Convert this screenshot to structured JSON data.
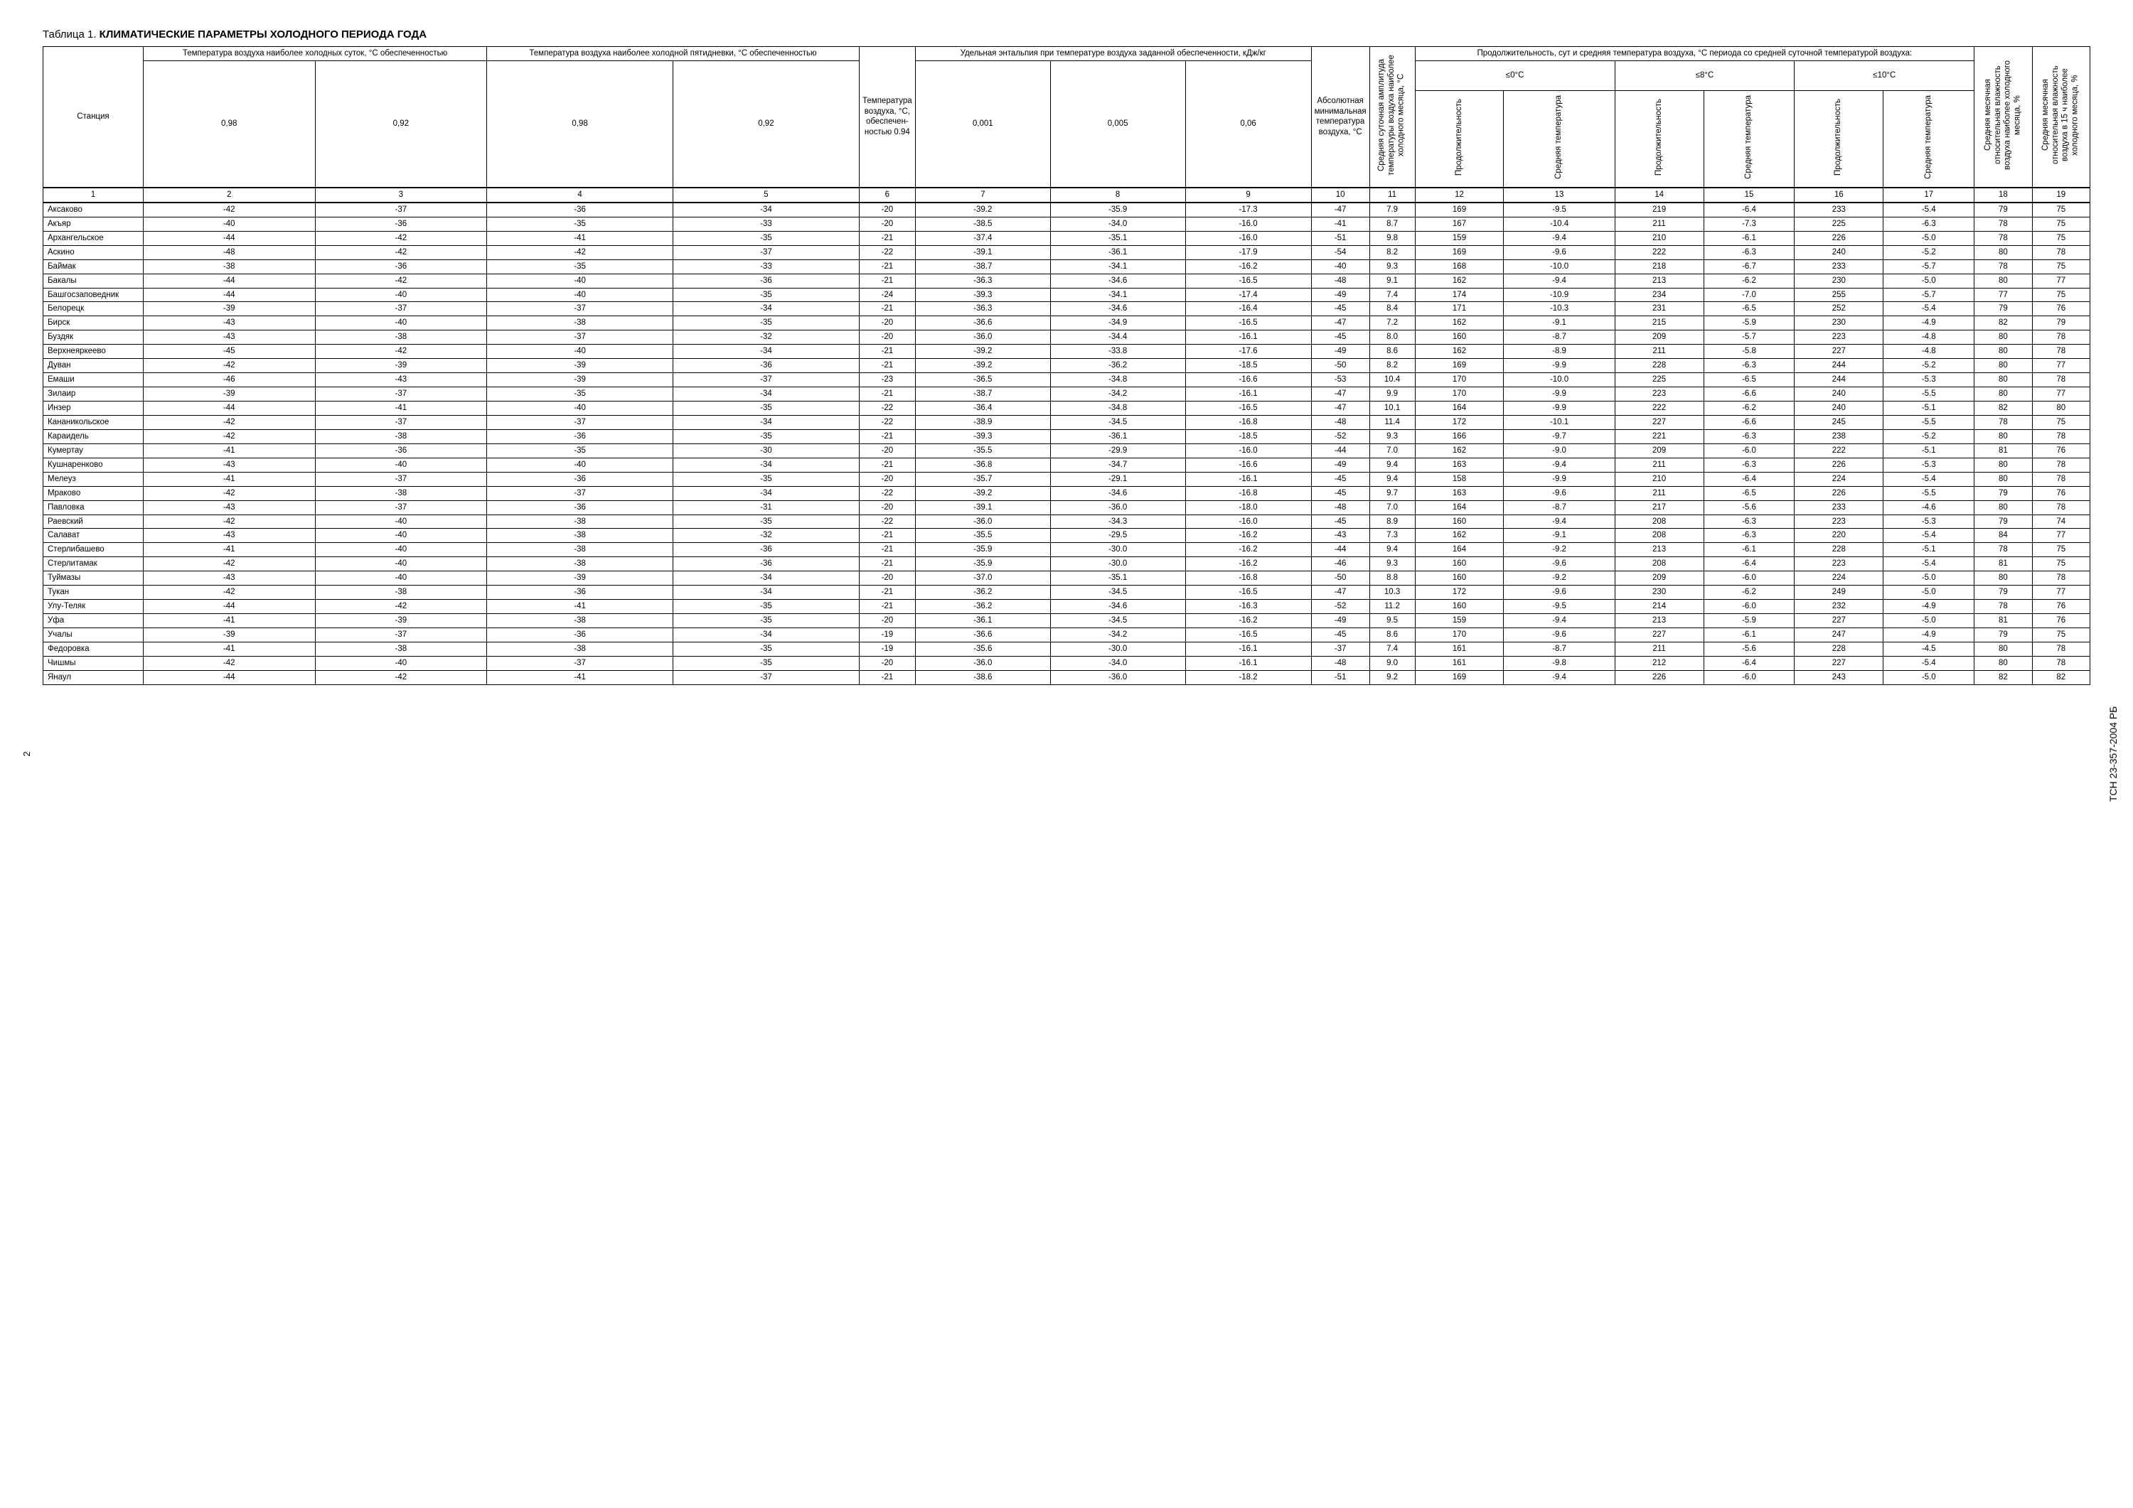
{
  "doc_code": "ТСН 23-357-2004 РБ",
  "page_number": "2",
  "title_prefix": "Таблица 1. ",
  "title_main": "КЛИМАТИЧЕСКИЕ ПАРАМЕТРЫ ХОЛОДНОГО ПЕРИОДА ГОДА",
  "headers": {
    "station": "Станция",
    "g1": "Температура воздуха наиболее холодных суток, °С обеспеченностью",
    "g2": "Температура воздуха наиболее холодной пятидневки, °С обеспеченностью",
    "g3": "Температура воздуха, °С, обеспечен-ностью 0.94",
    "g4": "Удельная энтальпия при температуре воздуха заданной обеспеченности, кДж/кг",
    "g5": "Абсолютная минимальная температура воздуха, °С",
    "g6": "Средняя суточная амплитуда температуры воздуха наиболее холодного месяца, °С",
    "g7": "Продолжительность, сут и средняя температура воздуха, °С периода со средней суточной температурой воздуха:",
    "g8": "Средняя месячная относительная влажность воздуха наиболее холодного месяца, %",
    "g9": "Средняя месячная относительная влажность воздуха в 15 ч наиболее холодного месяца, %",
    "sub_098": "0,98",
    "sub_092": "0,92",
    "sub_0001": "0,001",
    "sub_0005": "0,005",
    "sub_006": "0,06",
    "r0": "≤0°С",
    "r8": "≤8°С",
    "r10": "≤10°С",
    "dur": "Продолжительность",
    "avgt": "Средняя температура"
  },
  "colnums": [
    "1",
    "2",
    "3",
    "4",
    "5",
    "6",
    "7",
    "8",
    "9",
    "10",
    "11",
    "12",
    "13",
    "14",
    "15",
    "16",
    "17",
    "18",
    "19"
  ],
  "rows": [
    [
      "Аксаково",
      "-42",
      "-37",
      "-36",
      "-34",
      "-20",
      "-39.2",
      "-35.9",
      "-17.3",
      "-47",
      "7.9",
      "169",
      "-9.5",
      "219",
      "-6.4",
      "233",
      "-5.4",
      "79",
      "75"
    ],
    [
      "Акъяр",
      "-40",
      "-36",
      "-35",
      "-33",
      "-20",
      "-38.5",
      "-34.0",
      "-16.0",
      "-41",
      "8.7",
      "167",
      "-10.4",
      "211",
      "-7.3",
      "225",
      "-6.3",
      "78",
      "75"
    ],
    [
      "Архангельское",
      "-44",
      "-42",
      "-41",
      "-35",
      "-21",
      "-37.4",
      "-35.1",
      "-16.0",
      "-51",
      "9.8",
      "159",
      "-9.4",
      "210",
      "-6.1",
      "226",
      "-5.0",
      "78",
      "75"
    ],
    [
      "Аскино",
      "-48",
      "-42",
      "-42",
      "-37",
      "-22",
      "-39.1",
      "-36.1",
      "-17.9",
      "-54",
      "8.2",
      "169",
      "-9.6",
      "222",
      "-6.3",
      "240",
      "-5.2",
      "80",
      "78"
    ],
    [
      "Баймак",
      "-38",
      "-36",
      "-35",
      "-33",
      "-21",
      "-38.7",
      "-34.1",
      "-16.2",
      "-40",
      "9.3",
      "168",
      "-10.0",
      "218",
      "-6.7",
      "233",
      "-5.7",
      "78",
      "75"
    ],
    [
      "Бакалы",
      "-44",
      "-42",
      "-40",
      "-36",
      "-21",
      "-36.3",
      "-34.6",
      "-16.5",
      "-48",
      "9.1",
      "162",
      "-9.4",
      "213",
      "-6.2",
      "230",
      "-5.0",
      "80",
      "77"
    ],
    [
      "Башгосзаповедник",
      "-44",
      "-40",
      "-40",
      "-35",
      "-24",
      "-39.3",
      "-34.1",
      "-17.4",
      "-49",
      "7.4",
      "174",
      "-10.9",
      "234",
      "-7.0",
      "255",
      "-5.7",
      "77",
      "75"
    ],
    [
      "Белорецк",
      "-39",
      "-37",
      "-37",
      "-34",
      "-21",
      "-36.3",
      "-34.6",
      "-16.4",
      "-45",
      "8.4",
      "171",
      "-10.3",
      "231",
      "-6.5",
      "252",
      "-5.4",
      "79",
      "76"
    ],
    [
      "Бирск",
      "-43",
      "-40",
      "-38",
      "-35",
      "-20",
      "-36.6",
      "-34.9",
      "-16.5",
      "-47",
      "7.2",
      "162",
      "-9.1",
      "215",
      "-5.9",
      "230",
      "-4.9",
      "82",
      "79"
    ],
    [
      "Буздяк",
      "-43",
      "-38",
      "-37",
      "-32",
      "-20",
      "-36.0",
      "-34.4",
      "-16.1",
      "-45",
      "8.0",
      "160",
      "-8.7",
      "209",
      "-5.7",
      "223",
      "-4.8",
      "80",
      "78"
    ],
    [
      "Верхнеяркеево",
      "-45",
      "-42",
      "-40",
      "-34",
      "-21",
      "-39.2",
      "-33.8",
      "-17.6",
      "-49",
      "8.6",
      "162",
      "-8.9",
      "211",
      "-5.8",
      "227",
      "-4.8",
      "80",
      "78"
    ],
    [
      "Дуван",
      "-42",
      "-39",
      "-39",
      "-36",
      "-21",
      "-39.2",
      "-36.2",
      "-18.5",
      "-50",
      "8.2",
      "169",
      "-9.9",
      "228",
      "-6.3",
      "244",
      "-5.2",
      "80",
      "77"
    ],
    [
      "Емаши",
      "-46",
      "-43",
      "-39",
      "-37",
      "-23",
      "-36.5",
      "-34.8",
      "-16.6",
      "-53",
      "10.4",
      "170",
      "-10.0",
      "225",
      "-6.5",
      "244",
      "-5.3",
      "80",
      "78"
    ],
    [
      "Зилаир",
      "-39",
      "-37",
      "-35",
      "-34",
      "-21",
      "-38.7",
      "-34.2",
      "-16.1",
      "-47",
      "9.9",
      "170",
      "-9.9",
      "223",
      "-6.6",
      "240",
      "-5.5",
      "80",
      "77"
    ],
    [
      "Инзер",
      "-44",
      "-41",
      "-40",
      "-35",
      "-22",
      "-36.4",
      "-34.8",
      "-16.5",
      "-47",
      "10.1",
      "164",
      "-9.9",
      "222",
      "-6.2",
      "240",
      "-5.1",
      "82",
      "80"
    ],
    [
      "Кананикольское",
      "-42",
      "-37",
      "-37",
      "-34",
      "-22",
      "-38.9",
      "-34.5",
      "-16.8",
      "-48",
      "11.4",
      "172",
      "-10.1",
      "227",
      "-6.6",
      "245",
      "-5.5",
      "78",
      "75"
    ],
    [
      "Караидель",
      "-42",
      "-38",
      "-36",
      "-35",
      "-21",
      "-39.3",
      "-36.1",
      "-18.5",
      "-52",
      "9.3",
      "166",
      "-9.7",
      "221",
      "-6.3",
      "238",
      "-5.2",
      "80",
      "78"
    ],
    [
      "Кумертау",
      "-41",
      "-36",
      "-35",
      "-30",
      "-20",
      "-35.5",
      "-29.9",
      "-16.0",
      "-44",
      "7.0",
      "162",
      "-9.0",
      "209",
      "-6.0",
      "222",
      "-5.1",
      "81",
      "76"
    ],
    [
      "Кушнаренково",
      "-43",
      "-40",
      "-40",
      "-34",
      "-21",
      "-36.8",
      "-34.7",
      "-16.6",
      "-49",
      "9.4",
      "163",
      "-9.4",
      "211",
      "-6.3",
      "226",
      "-5.3",
      "80",
      "78"
    ],
    [
      "Мелеуз",
      "-41",
      "-37",
      "-36",
      "-35",
      "-20",
      "-35.7",
      "-29.1",
      "-16.1",
      "-45",
      "9.4",
      "158",
      "-9.9",
      "210",
      "-6.4",
      "224",
      "-5.4",
      "80",
      "78"
    ],
    [
      "Мраково",
      "-42",
      "-38",
      "-37",
      "-34",
      "-22",
      "-39.2",
      "-34.6",
      "-16.8",
      "-45",
      "9.7",
      "163",
      "-9.6",
      "211",
      "-6.5",
      "226",
      "-5.5",
      "79",
      "76"
    ],
    [
      "Павловка",
      "-43",
      "-37",
      "-36",
      "-31",
      "-20",
      "-39.1",
      "-36.0",
      "-18.0",
      "-48",
      "7.0",
      "164",
      "-8.7",
      "217",
      "-5.6",
      "233",
      "-4.6",
      "80",
      "78"
    ],
    [
      "Раевский",
      "-42",
      "-40",
      "-38",
      "-35",
      "-22",
      "-36.0",
      "-34.3",
      "-16.0",
      "-45",
      "8.9",
      "160",
      "-9.4",
      "208",
      "-6.3",
      "223",
      "-5.3",
      "79",
      "74"
    ],
    [
      "Салават",
      "-43",
      "-40",
      "-38",
      "-32",
      "-21",
      "-35.5",
      "-29.5",
      "-16.2",
      "-43",
      "7.3",
      "162",
      "-9.1",
      "208",
      "-6.3",
      "220",
      "-5.4",
      "84",
      "77"
    ],
    [
      "Стерлибашево",
      "-41",
      "-40",
      "-38",
      "-36",
      "-21",
      "-35.9",
      "-30.0",
      "-16.2",
      "-44",
      "9.4",
      "164",
      "-9.2",
      "213",
      "-6.1",
      "228",
      "-5.1",
      "78",
      "75"
    ],
    [
      "Стерлитамак",
      "-42",
      "-40",
      "-38",
      "-36",
      "-21",
      "-35.9",
      "-30.0",
      "-16.2",
      "-46",
      "9.3",
      "160",
      "-9.6",
      "208",
      "-6.4",
      "223",
      "-5.4",
      "81",
      "75"
    ],
    [
      "Туймазы",
      "-43",
      "-40",
      "-39",
      "-34",
      "-20",
      "-37.0",
      "-35.1",
      "-16.8",
      "-50",
      "8.8",
      "160",
      "-9.2",
      "209",
      "-6.0",
      "224",
      "-5.0",
      "80",
      "78"
    ],
    [
      "Тукан",
      "-42",
      "-38",
      "-36",
      "-34",
      "-21",
      "-36.2",
      "-34.5",
      "-16.5",
      "-47",
      "10.3",
      "172",
      "-9.6",
      "230",
      "-6.2",
      "249",
      "-5.0",
      "79",
      "77"
    ],
    [
      "Улу-Теляк",
      "-44",
      "-42",
      "-41",
      "-35",
      "-21",
      "-36.2",
      "-34.6",
      "-16.3",
      "-52",
      "11.2",
      "160",
      "-9.5",
      "214",
      "-6.0",
      "232",
      "-4.9",
      "78",
      "76"
    ],
    [
      "Уфа",
      "-41",
      "-39",
      "-38",
      "-35",
      "-20",
      "-36.1",
      "-34.5",
      "-16.2",
      "-49",
      "9.5",
      "159",
      "-9.4",
      "213",
      "-5.9",
      "227",
      "-5.0",
      "81",
      "76"
    ],
    [
      "Учалы",
      "-39",
      "-37",
      "-36",
      "-34",
      "-19",
      "-36.6",
      "-34.2",
      "-16.5",
      "-45",
      "8.6",
      "170",
      "-9.6",
      "227",
      "-6.1",
      "247",
      "-4.9",
      "79",
      "75"
    ],
    [
      "Федоровка",
      "-41",
      "-38",
      "-38",
      "-35",
      "-19",
      "-35.6",
      "-30.0",
      "-16.1",
      "-37",
      "7.4",
      "161",
      "-8.7",
      "211",
      "-5.6",
      "228",
      "-4.5",
      "80",
      "78"
    ],
    [
      "Чишмы",
      "-42",
      "-40",
      "-37",
      "-35",
      "-20",
      "-36.0",
      "-34.0",
      "-16.1",
      "-48",
      "9.0",
      "161",
      "-9.8",
      "212",
      "-6.4",
      "227",
      "-5.4",
      "80",
      "78"
    ],
    [
      "Янаул",
      "-44",
      "-42",
      "-41",
      "-37",
      "-21",
      "-38.6",
      "-36.0",
      "-18.2",
      "-51",
      "9.2",
      "169",
      "-9.4",
      "226",
      "-6.0",
      "243",
      "-5.0",
      "82",
      "82"
    ]
  ]
}
